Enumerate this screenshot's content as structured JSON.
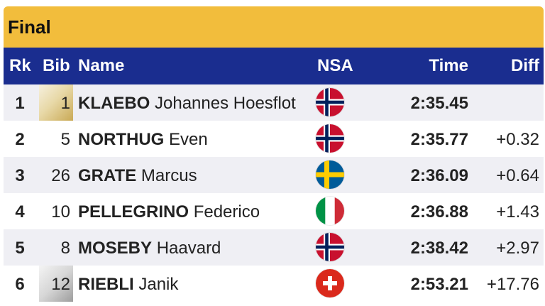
{
  "title": "Final",
  "columns": {
    "rank": "Rk",
    "bib": "Bib",
    "name": "Name",
    "nsa": "NSA",
    "time": "Time",
    "diff": "Diff"
  },
  "rows": [
    {
      "rank": "1",
      "bib": "1",
      "last_name": "KLAEBO",
      "first_name": "Johannes Hoesflot",
      "nsa_flag": "norway-flag-icon",
      "time": "2:35.45",
      "diff": "",
      "bib_style": "gold"
    },
    {
      "rank": "2",
      "bib": "5",
      "last_name": "NORTHUG",
      "first_name": "Even",
      "nsa_flag": "norway-flag-icon",
      "time": "2:35.77",
      "diff": "+0.32",
      "bib_style": "plain"
    },
    {
      "rank": "3",
      "bib": "26",
      "last_name": "GRATE",
      "first_name": "Marcus",
      "nsa_flag": "sweden-flag-icon",
      "time": "2:36.09",
      "diff": "+0.64",
      "bib_style": "plain"
    },
    {
      "rank": "4",
      "bib": "10",
      "last_name": "PELLEGRINO",
      "first_name": "Federico",
      "nsa_flag": "italy-flag-icon",
      "time": "2:36.88",
      "diff": "+1.43",
      "bib_style": "plain"
    },
    {
      "rank": "5",
      "bib": "8",
      "last_name": "MOSEBY",
      "first_name": "Haavard",
      "nsa_flag": "norway-flag-icon",
      "time": "2:38.42",
      "diff": "+2.97",
      "bib_style": "plain"
    },
    {
      "rank": "6",
      "bib": "12",
      "last_name": "RIEBLI",
      "first_name": "Janik",
      "nsa_flag": "switzerland-flag-icon",
      "time": "2:53.21",
      "diff": "+17.76",
      "bib_style": "silver"
    }
  ],
  "colors": {
    "title_bar": "#f2bd3c",
    "header_bar": "#1a2d8f",
    "row_alt": "#efeff4"
  }
}
